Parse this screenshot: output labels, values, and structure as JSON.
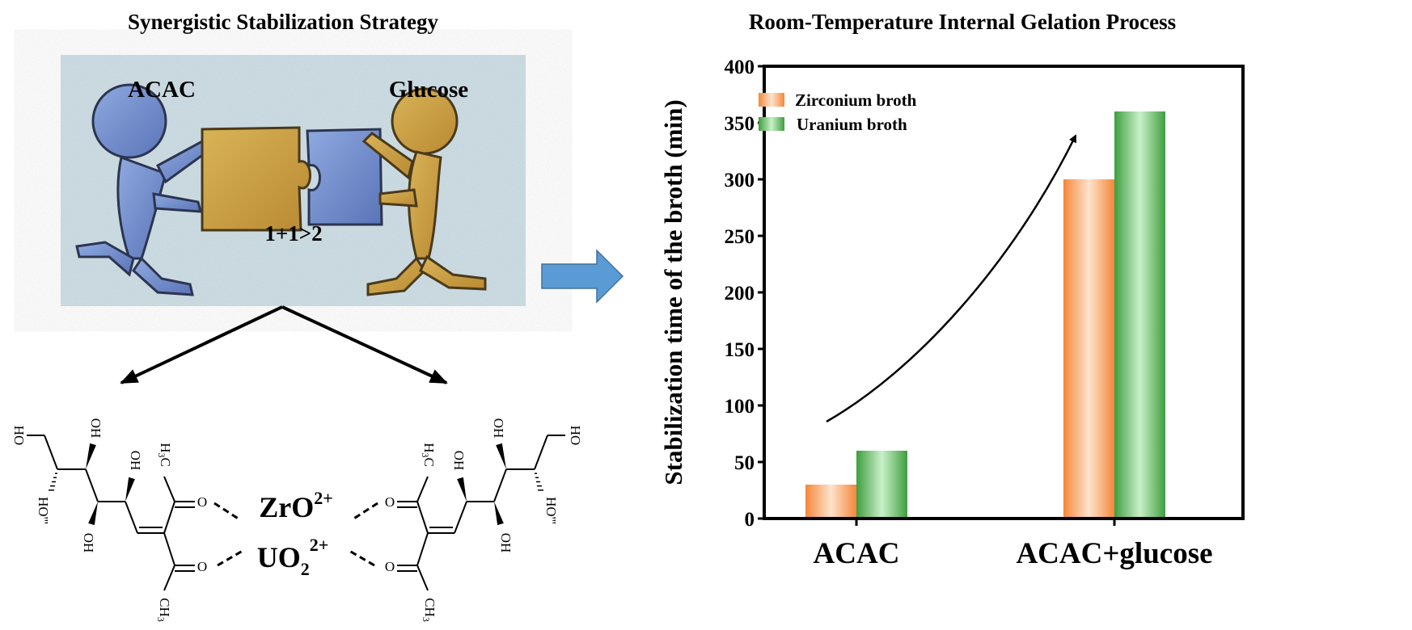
{
  "left_panel": {
    "title": "Synergistic Stabilization Strategy",
    "illustration": {
      "left_label": "ACAC",
      "right_label": "Glucose",
      "center_label": "1+1>2",
      "background_color": "#cfdfe6"
    },
    "chemistry": {
      "ion1": "ZrO",
      "ion1_charge": "2+",
      "ion2": "UO",
      "ion2_sub": "2",
      "ion2_charge": "2+",
      "groups": {
        "oh": "OH",
        "ho": "HO",
        "o": "O",
        "h3c": "H",
        "h3c_sub": "3",
        "h3c_c": "C",
        "ch3": "CH",
        "ch3_sub": "3"
      }
    }
  },
  "connector_arrow_color": "#5b9bd5",
  "right_panel": {
    "title": "Room-Temperature Internal Gelation Process"
  },
  "chart_data": {
    "type": "bar",
    "title": "Room-Temperature Internal Gelation Process",
    "xlabel": "",
    "ylabel": "Stabilization time of the broth (min)",
    "categories": [
      "ACAC",
      "ACAC+glucose"
    ],
    "series": [
      {
        "name": "Zirconium broth",
        "values": [
          30,
          300
        ],
        "color": "#f5873a"
      },
      {
        "name": "Uranium broth",
        "values": [
          60,
          360
        ],
        "color": "#3f9e3f"
      }
    ],
    "ylim": [
      0,
      400
    ],
    "yticks": [
      0,
      50,
      100,
      150,
      200,
      250,
      300,
      350,
      400
    ],
    "grid": false,
    "legend_position": "top-left",
    "annotation": "curved arrow indicating increase"
  }
}
